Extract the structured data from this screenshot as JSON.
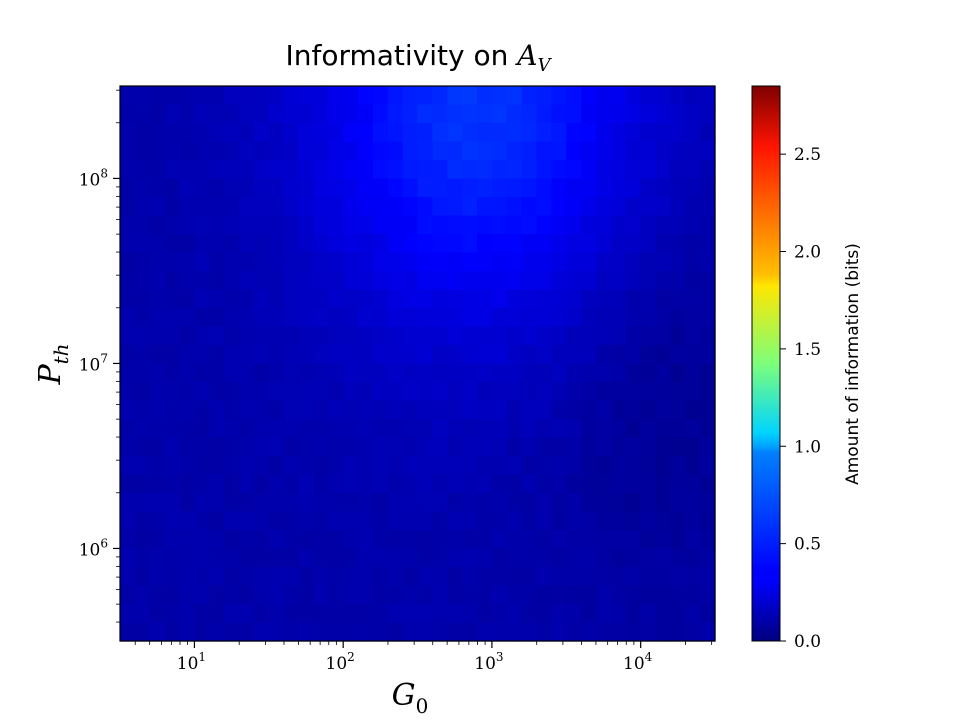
{
  "chart_data": {
    "type": "heatmap",
    "title": {
      "prefix": "Informativity on ",
      "math_main": "A",
      "math_sub": "V"
    },
    "xlabel": {
      "main": "G",
      "sub": "0"
    },
    "ylabel": {
      "main": "P",
      "sub": "th"
    },
    "x_scale": "log",
    "y_scale": "log",
    "xlim": [
      3.16,
      31600
    ],
    "ylim": [
      316000,
      316000000
    ],
    "x_ticks": [
      {
        "value": 10,
        "base": "10",
        "exp": "1"
      },
      {
        "value": 100,
        "base": "10",
        "exp": "2"
      },
      {
        "value": 1000,
        "base": "10",
        "exp": "3"
      },
      {
        "value": 10000,
        "base": "10",
        "exp": "4"
      }
    ],
    "y_ticks": [
      {
        "value": 1000000,
        "base": "10",
        "exp": "6"
      },
      {
        "value": 10000000,
        "base": "10",
        "exp": "7"
      },
      {
        "value": 100000000,
        "base": "10",
        "exp": "8"
      }
    ],
    "colorbar": {
      "label": "Amount of information (bits)",
      "colormap": "jet",
      "vmin": 0.0,
      "vmax": 2.85,
      "ticks": [
        "0.0",
        "0.5",
        "1.0",
        "1.5",
        "2.0",
        "2.5"
      ]
    },
    "value_field": {
      "description_units": "bits",
      "baseline": 0.12,
      "peak_value": 0.5,
      "peak_log10_G0": 2.9,
      "peak_log10_Pth": 8.4,
      "minimum_region_value": 0.05,
      "grid": [
        40,
        30
      ]
    },
    "grid": false
  }
}
